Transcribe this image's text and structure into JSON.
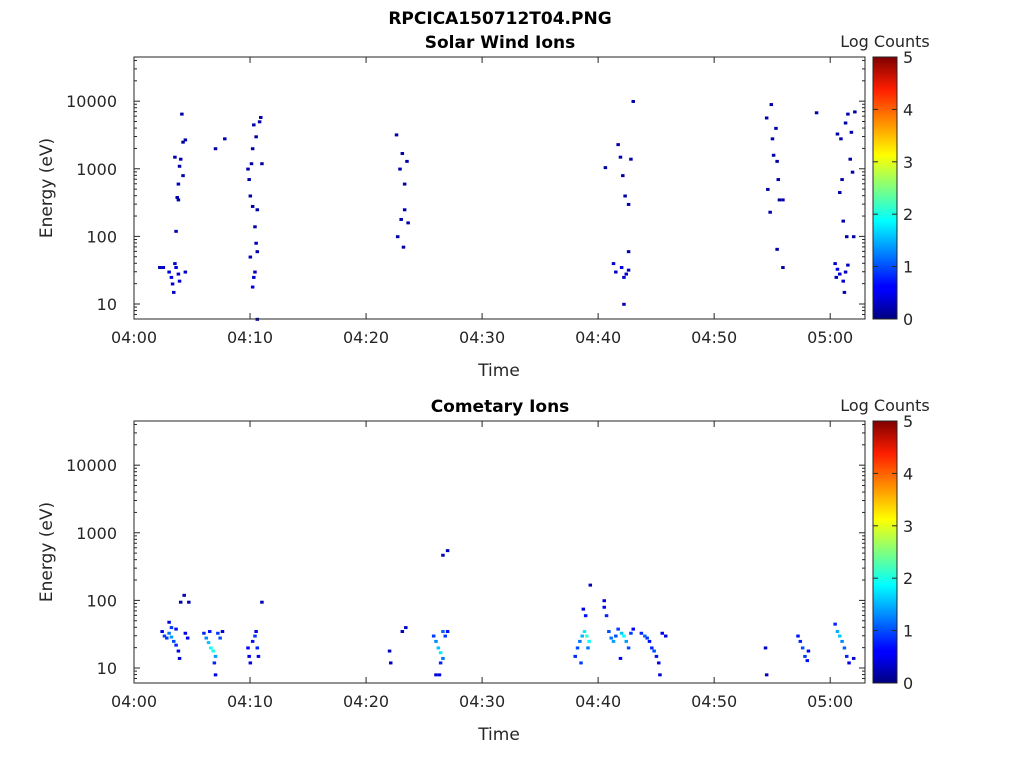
{
  "figure": {
    "filename": "RPCICA150712T04.PNG"
  },
  "chart_data": [
    {
      "type": "heatmap",
      "title": "Solar Wind Ions",
      "xlabel": "Time",
      "ylabel": "Energy (eV)",
      "xticks": [
        "04:00",
        "04:10",
        "04:20",
        "04:30",
        "04:40",
        "04:50",
        "05:00"
      ],
      "xlim_minutes_after_0400": [
        0,
        63
      ],
      "yscale": "log",
      "ylim": [
        6,
        45000
      ],
      "yticks": [
        10,
        100,
        1000,
        10000
      ],
      "ytick_labels": [
        "10",
        "100",
        "1000",
        "10000"
      ],
      "colorbar": {
        "label": "Log Counts",
        "min": 0,
        "max": 5,
        "ticks": [
          "0",
          "1",
          "2",
          "3",
          "4",
          "5"
        ],
        "colormap": "jet"
      },
      "cell_unit": {
        "time_minutes": 0.25,
        "log_energy": 0.035
      },
      "cells": [
        [
          2.2,
          35,
          0.3
        ],
        [
          2.5,
          35,
          0.3
        ],
        [
          3.0,
          30,
          0.4
        ],
        [
          3.2,
          25,
          0.5
        ],
        [
          3.3,
          20,
          0.4
        ],
        [
          3.4,
          15,
          0.3
        ],
        [
          3.5,
          40,
          0.4
        ],
        [
          3.6,
          35,
          0.5
        ],
        [
          3.8,
          28,
          0.4
        ],
        [
          3.9,
          22,
          0.4
        ],
        [
          4.4,
          30,
          0.3
        ],
        [
          3.6,
          120,
          0.3
        ],
        [
          3.7,
          380,
          0.2
        ],
        [
          3.8,
          600,
          0.3
        ],
        [
          3.9,
          1100,
          0.2
        ],
        [
          4.0,
          1400,
          0.3
        ],
        [
          4.1,
          6500,
          0.2
        ],
        [
          4.2,
          2500,
          0.2
        ],
        [
          4.4,
          2700,
          0.2
        ],
        [
          3.5,
          1500,
          0.2
        ],
        [
          3.8,
          350,
          0.2
        ],
        [
          4.2,
          800,
          0.2
        ],
        [
          7.0,
          2000,
          0.2
        ],
        [
          7.8,
          2800,
          0.2
        ],
        [
          10.0,
          50,
          0.3
        ],
        [
          10.2,
          18,
          0.5
        ],
        [
          10.3,
          25,
          0.4
        ],
        [
          10.4,
          30,
          0.3
        ],
        [
          10.5,
          80,
          0.3
        ],
        [
          10.6,
          60,
          0.2
        ],
        [
          10.6,
          6,
          0.2
        ],
        [
          9.8,
          1000,
          0.2
        ],
        [
          9.9,
          700,
          0.2
        ],
        [
          10.0,
          400,
          0.2
        ],
        [
          10.1,
          1200,
          0.2
        ],
        [
          10.2,
          2000,
          0.2
        ],
        [
          10.3,
          4500,
          0.2
        ],
        [
          10.5,
          3000,
          0.2
        ],
        [
          10.6,
          250,
          0.2
        ],
        [
          10.8,
          5000,
          0.2
        ],
        [
          10.9,
          5800,
          0.2
        ],
        [
          10.4,
          140,
          0.2
        ],
        [
          11.0,
          1200,
          0.2
        ],
        [
          10.2,
          280,
          0.2
        ],
        [
          22.6,
          3200,
          0.2
        ],
        [
          22.9,
          1000,
          0.2
        ],
        [
          23.1,
          1700,
          0.2
        ],
        [
          23.3,
          600,
          0.2
        ],
        [
          23.5,
          1300,
          0.2
        ],
        [
          23.0,
          180,
          0.2
        ],
        [
          23.3,
          250,
          0.2
        ],
        [
          23.6,
          160,
          0.2
        ],
        [
          22.7,
          100,
          0.2
        ],
        [
          23.2,
          70,
          0.2
        ],
        [
          40.6,
          1050,
          0.2
        ],
        [
          41.7,
          2300,
          0.2
        ],
        [
          41.9,
          1500,
          0.2
        ],
        [
          42.1,
          800,
          0.2
        ],
        [
          42.3,
          400,
          0.2
        ],
        [
          42.6,
          300,
          0.2
        ],
        [
          42.8,
          1400,
          0.2
        ],
        [
          43.0,
          10000,
          0.2
        ],
        [
          42.6,
          60,
          0.2
        ],
        [
          41.3,
          40,
          0.4
        ],
        [
          41.5,
          30,
          0.3
        ],
        [
          42.0,
          35,
          0.5
        ],
        [
          42.2,
          25,
          0.4
        ],
        [
          42.4,
          28,
          0.4
        ],
        [
          42.6,
          32,
          0.3
        ],
        [
          42.2,
          10,
          0.3
        ],
        [
          54.5,
          5700,
          0.2
        ],
        [
          54.9,
          9000,
          0.2
        ],
        [
          55.0,
          2800,
          0.2
        ],
        [
          55.1,
          1600,
          0.2
        ],
        [
          55.3,
          4000,
          0.2
        ],
        [
          55.4,
          1300,
          0.2
        ],
        [
          55.5,
          700,
          0.2
        ],
        [
          55.6,
          350,
          0.2
        ],
        [
          55.9,
          350,
          0.2
        ],
        [
          54.6,
          500,
          0.2
        ],
        [
          54.8,
          230,
          0.2
        ],
        [
          55.4,
          65,
          0.2
        ],
        [
          55.9,
          35,
          0.2
        ],
        [
          58.8,
          6800,
          0.2
        ],
        [
          60.6,
          3300,
          0.2
        ],
        [
          60.9,
          2800,
          0.2
        ],
        [
          61.3,
          4800,
          0.2
        ],
        [
          61.5,
          6500,
          0.2
        ],
        [
          61.8,
          3500,
          0.2
        ],
        [
          62.1,
          7000,
          0.2
        ],
        [
          60.8,
          450,
          0.2
        ],
        [
          61.0,
          700,
          0.2
        ],
        [
          61.1,
          170,
          0.2
        ],
        [
          61.4,
          100,
          0.2
        ],
        [
          62.0,
          100,
          0.2
        ],
        [
          61.9,
          900,
          0.2
        ],
        [
          61.7,
          1400,
          0.2
        ],
        [
          60.4,
          40,
          0.4
        ],
        [
          60.6,
          33,
          0.5
        ],
        [
          60.8,
          28,
          0.4
        ],
        [
          61.1,
          22,
          0.4
        ],
        [
          61.3,
          30,
          0.3
        ],
        [
          61.5,
          38,
          0.3
        ],
        [
          61.2,
          15,
          0.3
        ],
        [
          60.5,
          25,
          0.3
        ]
      ]
    },
    {
      "type": "heatmap",
      "title": "Cometary Ions",
      "xlabel": "Time",
      "ylabel": "Energy (eV)",
      "xticks": [
        "04:00",
        "04:10",
        "04:20",
        "04:30",
        "04:40",
        "04:50",
        "05:00"
      ],
      "xlim_minutes_after_0400": [
        0,
        63
      ],
      "yscale": "log",
      "ylim": [
        6,
        45000
      ],
      "yticks": [
        10,
        100,
        1000,
        10000
      ],
      "ytick_labels": [
        "10",
        "100",
        "1000",
        "10000"
      ],
      "colorbar": {
        "label": "Log Counts",
        "min": 0,
        "max": 5,
        "ticks": [
          "0",
          "1",
          "2",
          "3",
          "4",
          "5"
        ],
        "colormap": "jet"
      },
      "cell_unit": {
        "time_minutes": 0.25,
        "log_energy": 0.035
      },
      "cells": [
        [
          2.4,
          35,
          0.6
        ],
        [
          2.6,
          30,
          0.9
        ],
        [
          2.8,
          28,
          0.9
        ],
        [
          3.0,
          33,
          1.2
        ],
        [
          3.2,
          29,
          1.4
        ],
        [
          3.4,
          25,
          1.0
        ],
        [
          3.6,
          22,
          0.8
        ],
        [
          3.8,
          18,
          0.5
        ],
        [
          3.9,
          14,
          0.4
        ],
        [
          3.0,
          48,
          0.5
        ],
        [
          3.2,
          40,
          0.9
        ],
        [
          3.6,
          38,
          0.7
        ],
        [
          4.4,
          33,
          0.5
        ],
        [
          4.6,
          28,
          0.6
        ],
        [
          4.3,
          120,
          0.3
        ],
        [
          4.0,
          95,
          0.2
        ],
        [
          4.7,
          95,
          0.2
        ],
        [
          6.0,
          33,
          0.8
        ],
        [
          6.2,
          28,
          1.3
        ],
        [
          6.4,
          24,
          1.6
        ],
        [
          6.6,
          20,
          1.9
        ],
        [
          6.8,
          18,
          2.0
        ],
        [
          7.0,
          15,
          1.4
        ],
        [
          6.9,
          12,
          0.8
        ],
        [
          7.0,
          8,
          0.5
        ],
        [
          7.2,
          33,
          0.9
        ],
        [
          7.4,
          28,
          1.0
        ],
        [
          7.6,
          35,
          0.4
        ],
        [
          6.5,
          35,
          0.7
        ],
        [
          9.8,
          20,
          0.6
        ],
        [
          9.9,
          15,
          0.5
        ],
        [
          10.0,
          12,
          0.5
        ],
        [
          10.2,
          25,
          0.7
        ],
        [
          10.4,
          30,
          0.9
        ],
        [
          10.6,
          20,
          0.8
        ],
        [
          10.7,
          15,
          0.6
        ],
        [
          10.5,
          35,
          0.6
        ],
        [
          11.0,
          95,
          0.3
        ],
        [
          22.0,
          18,
          0.3
        ],
        [
          22.1,
          12,
          0.3
        ],
        [
          23.1,
          35,
          0.3
        ],
        [
          23.4,
          40,
          0.3
        ],
        [
          25.8,
          30,
          0.9
        ],
        [
          26.0,
          25,
          1.3
        ],
        [
          26.2,
          20,
          1.6
        ],
        [
          26.4,
          17,
          1.8
        ],
        [
          26.6,
          14,
          1.2
        ],
        [
          26.4,
          12,
          0.8
        ],
        [
          26.3,
          8,
          0.5
        ],
        [
          26.6,
          35,
          1.1
        ],
        [
          26.8,
          30,
          0.9
        ],
        [
          27.0,
          35,
          0.7
        ],
        [
          26.6,
          470,
          0.3
        ],
        [
          27.0,
          550,
          0.3
        ],
        [
          26.0,
          8,
          0.4
        ],
        [
          38.0,
          15,
          0.8
        ],
        [
          38.2,
          20,
          1.0
        ],
        [
          38.4,
          25,
          1.2
        ],
        [
          38.6,
          30,
          1.5
        ],
        [
          38.8,
          35,
          1.8
        ],
        [
          39.0,
          30,
          2.1
        ],
        [
          39.2,
          25,
          1.9
        ],
        [
          38.9,
          60,
          0.7
        ],
        [
          38.7,
          75,
          0.5
        ],
        [
          39.3,
          170,
          0.3
        ],
        [
          39.1,
          20,
          1.2
        ],
        [
          38.5,
          12,
          0.9
        ],
        [
          40.5,
          80,
          0.6
        ],
        [
          40.7,
          60,
          0.8
        ],
        [
          40.9,
          35,
          1.0
        ],
        [
          41.1,
          28,
          1.2
        ],
        [
          41.3,
          25,
          1.4
        ],
        [
          41.5,
          30,
          1.0
        ],
        [
          41.7,
          38,
          0.9
        ],
        [
          42.0,
          33,
          1.6
        ],
        [
          42.2,
          30,
          1.9
        ],
        [
          42.4,
          25,
          1.4
        ],
        [
          42.6,
          20,
          1.0
        ],
        [
          42.8,
          33,
          0.9
        ],
        [
          43.0,
          38,
          0.6
        ],
        [
          40.5,
          100,
          0.5
        ],
        [
          41.9,
          14,
          0.6
        ],
        [
          43.7,
          33,
          0.8
        ],
        [
          44.0,
          30,
          1.1
        ],
        [
          44.2,
          28,
          0.9
        ],
        [
          44.4,
          25,
          0.7
        ],
        [
          44.6,
          20,
          0.8
        ],
        [
          44.8,
          18,
          1.0
        ],
        [
          45.0,
          15,
          0.7
        ],
        [
          45.2,
          12,
          0.6
        ],
        [
          45.5,
          33,
          0.6
        ],
        [
          45.8,
          30,
          0.5
        ],
        [
          45.3,
          8,
          0.4
        ],
        [
          54.4,
          20,
          0.4
        ],
        [
          54.5,
          8,
          0.3
        ],
        [
          57.2,
          30,
          0.7
        ],
        [
          57.4,
          25,
          0.8
        ],
        [
          57.6,
          20,
          1.0
        ],
        [
          57.8,
          15,
          0.9
        ],
        [
          58.0,
          13,
          0.7
        ],
        [
          58.1,
          18,
          0.6
        ],
        [
          60.4,
          45,
          0.8
        ],
        [
          60.6,
          35,
          1.5
        ],
        [
          60.8,
          30,
          1.6
        ],
        [
          61.0,
          25,
          1.3
        ],
        [
          61.2,
          20,
          1.1
        ],
        [
          61.4,
          15,
          0.8
        ],
        [
          61.6,
          12,
          0.5
        ],
        [
          62.0,
          14,
          0.4
        ]
      ]
    }
  ]
}
